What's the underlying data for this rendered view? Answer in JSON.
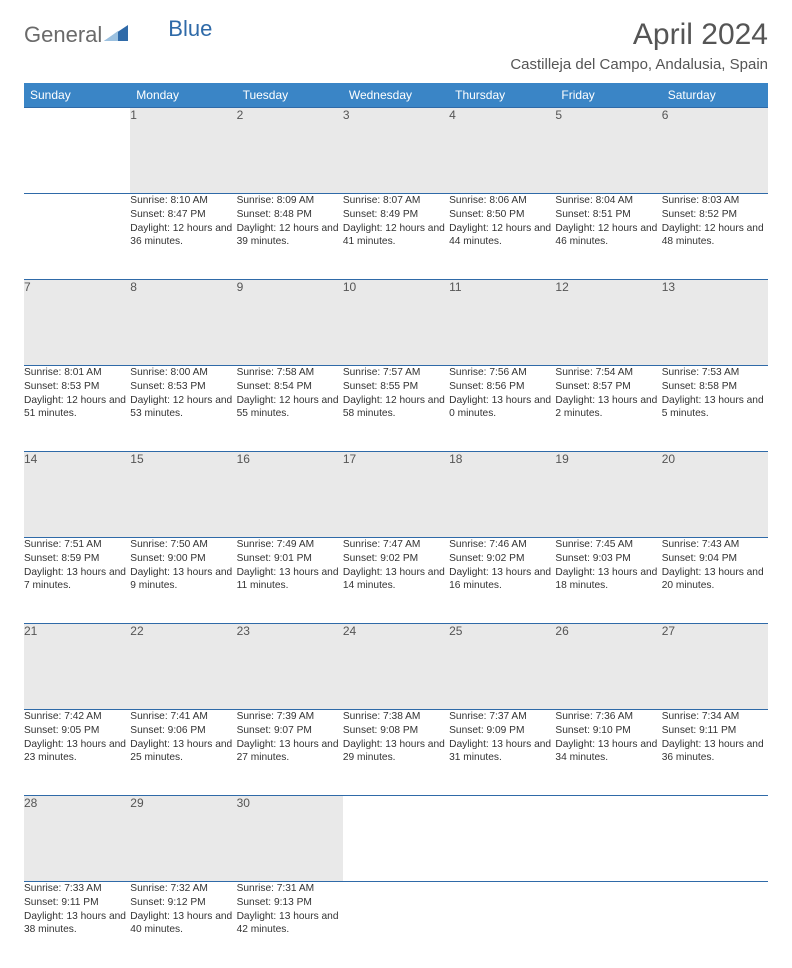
{
  "logo": {
    "part1": "General",
    "part2": "Blue"
  },
  "title": "April 2024",
  "location": "Castilleja del Campo, Andalusia, Spain",
  "colors": {
    "header_bg": "#3a85c6",
    "border": "#2f6aa8",
    "daynum_bg": "#e9e9e9"
  },
  "day_headers": [
    "Sunday",
    "Monday",
    "Tuesday",
    "Wednesday",
    "Thursday",
    "Friday",
    "Saturday"
  ],
  "weeks": [
    [
      null,
      {
        "n": "1",
        "sr": "8:10 AM",
        "ss": "8:47 PM",
        "dl": "12 hours and 36 minutes."
      },
      {
        "n": "2",
        "sr": "8:09 AM",
        "ss": "8:48 PM",
        "dl": "12 hours and 39 minutes."
      },
      {
        "n": "3",
        "sr": "8:07 AM",
        "ss": "8:49 PM",
        "dl": "12 hours and 41 minutes."
      },
      {
        "n": "4",
        "sr": "8:06 AM",
        "ss": "8:50 PM",
        "dl": "12 hours and 44 minutes."
      },
      {
        "n": "5",
        "sr": "8:04 AM",
        "ss": "8:51 PM",
        "dl": "12 hours and 46 minutes."
      },
      {
        "n": "6",
        "sr": "8:03 AM",
        "ss": "8:52 PM",
        "dl": "12 hours and 48 minutes."
      }
    ],
    [
      {
        "n": "7",
        "sr": "8:01 AM",
        "ss": "8:53 PM",
        "dl": "12 hours and 51 minutes."
      },
      {
        "n": "8",
        "sr": "8:00 AM",
        "ss": "8:53 PM",
        "dl": "12 hours and 53 minutes."
      },
      {
        "n": "9",
        "sr": "7:58 AM",
        "ss": "8:54 PM",
        "dl": "12 hours and 55 minutes."
      },
      {
        "n": "10",
        "sr": "7:57 AM",
        "ss": "8:55 PM",
        "dl": "12 hours and 58 minutes."
      },
      {
        "n": "11",
        "sr": "7:56 AM",
        "ss": "8:56 PM",
        "dl": "13 hours and 0 minutes."
      },
      {
        "n": "12",
        "sr": "7:54 AM",
        "ss": "8:57 PM",
        "dl": "13 hours and 2 minutes."
      },
      {
        "n": "13",
        "sr": "7:53 AM",
        "ss": "8:58 PM",
        "dl": "13 hours and 5 minutes."
      }
    ],
    [
      {
        "n": "14",
        "sr": "7:51 AM",
        "ss": "8:59 PM",
        "dl": "13 hours and 7 minutes."
      },
      {
        "n": "15",
        "sr": "7:50 AM",
        "ss": "9:00 PM",
        "dl": "13 hours and 9 minutes."
      },
      {
        "n": "16",
        "sr": "7:49 AM",
        "ss": "9:01 PM",
        "dl": "13 hours and 11 minutes."
      },
      {
        "n": "17",
        "sr": "7:47 AM",
        "ss": "9:02 PM",
        "dl": "13 hours and 14 minutes."
      },
      {
        "n": "18",
        "sr": "7:46 AM",
        "ss": "9:02 PM",
        "dl": "13 hours and 16 minutes."
      },
      {
        "n": "19",
        "sr": "7:45 AM",
        "ss": "9:03 PM",
        "dl": "13 hours and 18 minutes."
      },
      {
        "n": "20",
        "sr": "7:43 AM",
        "ss": "9:04 PM",
        "dl": "13 hours and 20 minutes."
      }
    ],
    [
      {
        "n": "21",
        "sr": "7:42 AM",
        "ss": "9:05 PM",
        "dl": "13 hours and 23 minutes."
      },
      {
        "n": "22",
        "sr": "7:41 AM",
        "ss": "9:06 PM",
        "dl": "13 hours and 25 minutes."
      },
      {
        "n": "23",
        "sr": "7:39 AM",
        "ss": "9:07 PM",
        "dl": "13 hours and 27 minutes."
      },
      {
        "n": "24",
        "sr": "7:38 AM",
        "ss": "9:08 PM",
        "dl": "13 hours and 29 minutes."
      },
      {
        "n": "25",
        "sr": "7:37 AM",
        "ss": "9:09 PM",
        "dl": "13 hours and 31 minutes."
      },
      {
        "n": "26",
        "sr": "7:36 AM",
        "ss": "9:10 PM",
        "dl": "13 hours and 34 minutes."
      },
      {
        "n": "27",
        "sr": "7:34 AM",
        "ss": "9:11 PM",
        "dl": "13 hours and 36 minutes."
      }
    ],
    [
      {
        "n": "28",
        "sr": "7:33 AM",
        "ss": "9:11 PM",
        "dl": "13 hours and 38 minutes."
      },
      {
        "n": "29",
        "sr": "7:32 AM",
        "ss": "9:12 PM",
        "dl": "13 hours and 40 minutes."
      },
      {
        "n": "30",
        "sr": "7:31 AM",
        "ss": "9:13 PM",
        "dl": "13 hours and 42 minutes."
      },
      null,
      null,
      null,
      null
    ]
  ],
  "labels": {
    "sunrise": "Sunrise:",
    "sunset": "Sunset:",
    "daylight": "Daylight:"
  }
}
